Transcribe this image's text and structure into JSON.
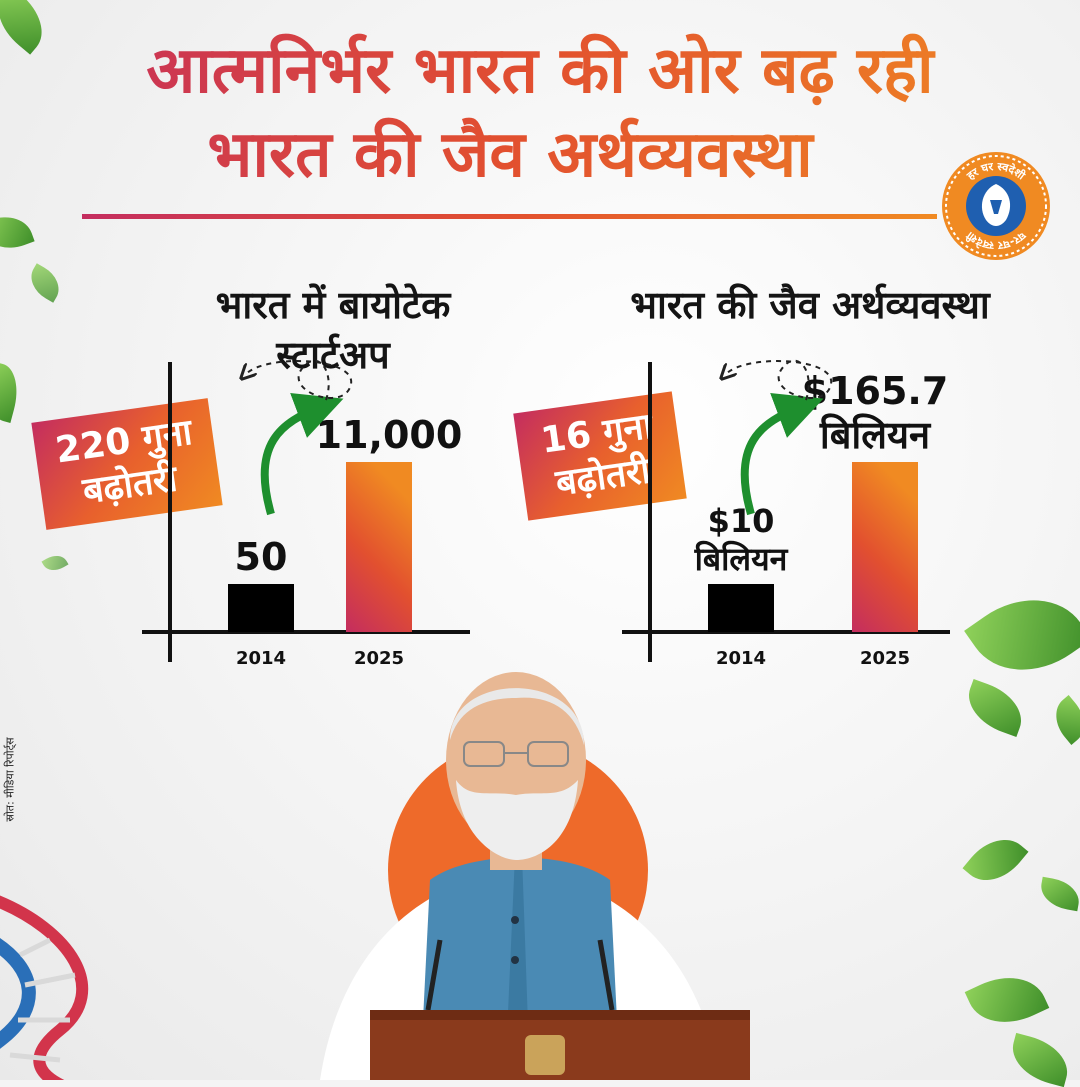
{
  "header": {
    "title_line1": "आत्मनिर्भर भारत की ओर बढ़ रही",
    "title_line2": "भारत की जैव अर्थव्यवस्था",
    "logo_text_top": "हर घर स्वदेशी",
    "logo_text_bottom": "घर-घर स्वदेशी"
  },
  "source_note": "स्रोत: मीडिया रिपोर्ट्स",
  "colors": {
    "accent_start": "#c42d5f",
    "accent_mid": "#e2502f",
    "accent_end": "#f08a22",
    "bar_2014": "#000000",
    "arrow": "#1e8f2e"
  },
  "chart_data": [
    {
      "type": "bar",
      "title": "भारत में बायोटेक स्टार्टअप",
      "categories": [
        "2014",
        "2025"
      ],
      "values": [
        50,
        11000
      ],
      "data_labels": [
        "50",
        "11,000"
      ],
      "annotation": "220 गुना बढ़ोतरी",
      "grid": false
    },
    {
      "type": "bar",
      "title": "भारत की जैव अर्थव्यवस्था",
      "categories": [
        "2014",
        "2025"
      ],
      "values": [
        10,
        165.7
      ],
      "data_labels": [
        "$10 बिलियन",
        "$165.7 बिलियन"
      ],
      "annotation": "16 गुना बढ़ोतरी",
      "grid": false
    }
  ],
  "decor": {
    "person": "speaker-at-podium",
    "leaves": "green-leaves",
    "dna": "dna-strand"
  }
}
